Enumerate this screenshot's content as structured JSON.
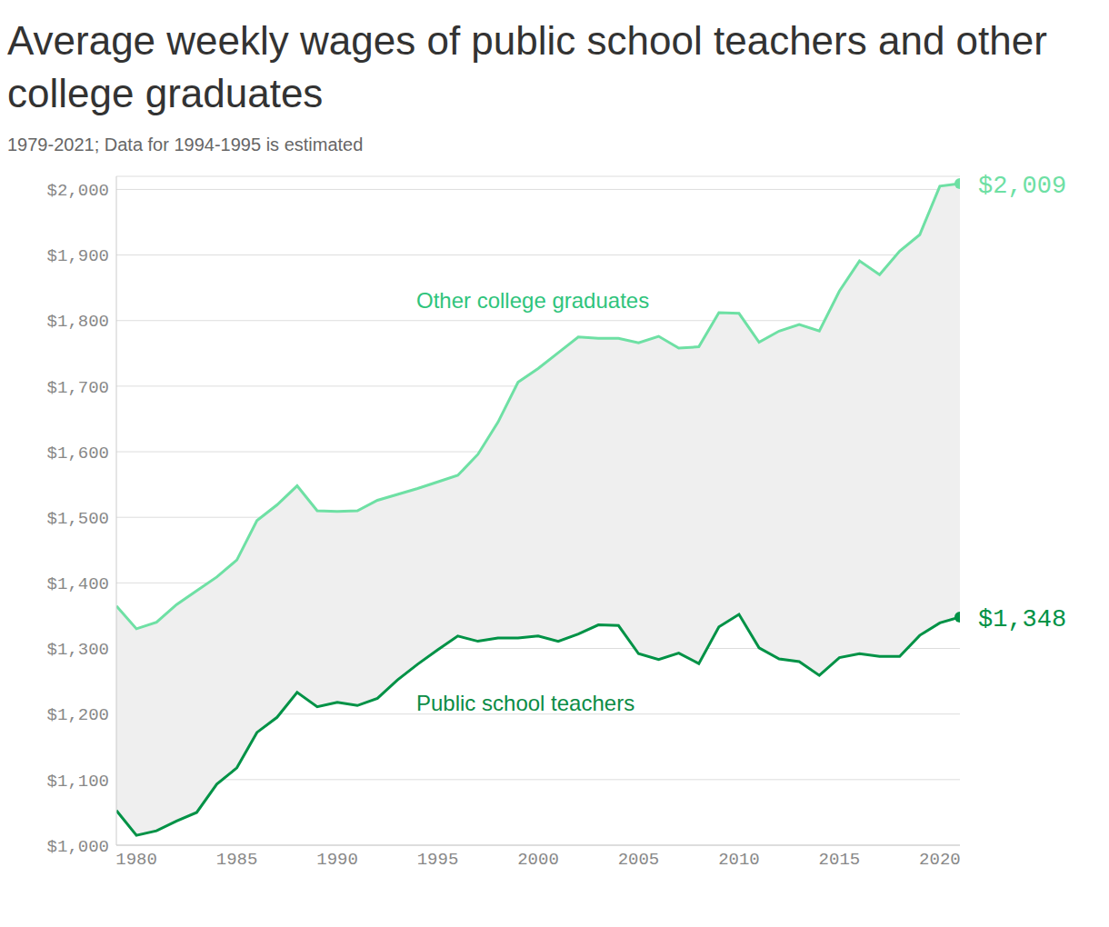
{
  "chart_data": {
    "type": "line",
    "title": "Average weekly wages of public school teachers and other college graduates",
    "subtitle": "1979-2021; Data for 1994-1995 is estimated",
    "x": [
      1979,
      1980,
      1981,
      1982,
      1983,
      1984,
      1985,
      1986,
      1987,
      1988,
      1989,
      1990,
      1991,
      1992,
      1993,
      1994,
      1995,
      1996,
      1997,
      1998,
      1999,
      2000,
      2001,
      2002,
      2003,
      2004,
      2005,
      2006,
      2007,
      2008,
      2009,
      2010,
      2011,
      2012,
      2013,
      2014,
      2015,
      2016,
      2017,
      2018,
      2019,
      2020,
      2021
    ],
    "series": [
      {
        "name": "Other college graduates",
        "color": "#6ee0a4",
        "values": [
          1365,
          1330,
          1340,
          1367,
          1388,
          1409,
          1435,
          1495,
          1519,
          1548,
          1510,
          1509,
          1510,
          1526,
          1535,
          1544,
          1554,
          1564,
          1596,
          1645,
          1706,
          1727,
          1751,
          1775,
          1773,
          1773,
          1766,
          1776,
          1758,
          1760,
          1812,
          1811,
          1767,
          1784,
          1794,
          1784,
          1845,
          1891,
          1870,
          1906,
          1931,
          2005,
          2009
        ],
        "value_labels": [
          null,
          null,
          null,
          null,
          null,
          null,
          null,
          null,
          null,
          null,
          null,
          null,
          null,
          null,
          null,
          null,
          null,
          null,
          null,
          null,
          null,
          null,
          null,
          null,
          null,
          null,
          null,
          null,
          null,
          null,
          null,
          null,
          null,
          null,
          null,
          null,
          null,
          null,
          null,
          null,
          null,
          null,
          "$2,009"
        ]
      },
      {
        "name": "Public school teachers",
        "color": "#009246",
        "values": [
          1053,
          1015,
          1022,
          1037,
          1050,
          1093,
          1118,
          1172,
          1195,
          1233,
          1211,
          1218,
          1213,
          1224,
          1252,
          1276,
          1298,
          1319,
          1311,
          1316,
          1316,
          1319,
          1311,
          1322,
          1336,
          1335,
          1292,
          1283,
          1293,
          1277,
          1333,
          1352,
          1301,
          1284,
          1280,
          1259,
          1286,
          1292,
          1288,
          1288,
          1320,
          1339,
          1348
        ],
        "value_labels": [
          null,
          null,
          null,
          null,
          null,
          null,
          null,
          null,
          null,
          null,
          null,
          null,
          null,
          null,
          null,
          null,
          null,
          null,
          null,
          null,
          null,
          null,
          null,
          null,
          null,
          null,
          null,
          null,
          null,
          null,
          null,
          null,
          null,
          null,
          null,
          null,
          null,
          null,
          null,
          null,
          null,
          null,
          "$1,348"
        ]
      }
    ],
    "xlim": [
      1979,
      2021
    ],
    "xticks": [
      1980,
      1985,
      1990,
      1995,
      2000,
      2005,
      2010,
      2015,
      2020
    ],
    "ylim": [
      1000,
      2020
    ],
    "yticks": [
      {
        "value": 1000,
        "label": "$1,000"
      },
      {
        "value": 1100,
        "label": "$1,100"
      },
      {
        "value": 1200,
        "label": "$1,200"
      },
      {
        "value": 1300,
        "label": "$1,300"
      },
      {
        "value": 1400,
        "label": "$1,400"
      },
      {
        "value": 1500,
        "label": "$1,500"
      },
      {
        "value": 1600,
        "label": "$1,600"
      },
      {
        "value": 1700,
        "label": "$1,700"
      },
      {
        "value": 1800,
        "label": "$1,800"
      },
      {
        "value": 1900,
        "label": "$1,900"
      },
      {
        "value": 2000,
        "label": "$2,000"
      }
    ],
    "grid": true
  }
}
